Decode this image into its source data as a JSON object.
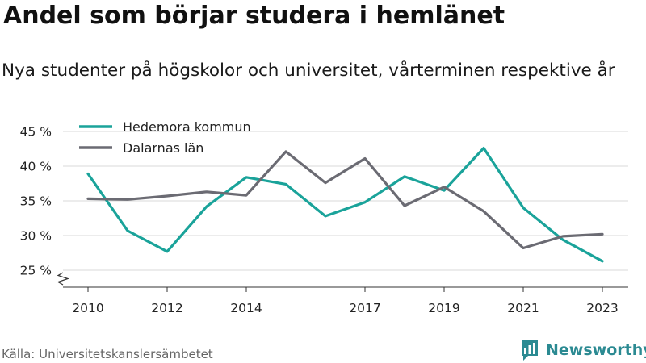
{
  "title": "Andel som börjar studera i hemlänet",
  "subtitle": "Nya studenter på högskolor och universitet, vårterminen respektive år",
  "source": "Källa: Universitetskanslersämbetet",
  "brand": {
    "name": "Newsworthy",
    "icon": "newsworthy-logo-icon",
    "color": "#2b8a92"
  },
  "chart_data": {
    "type": "line",
    "x": [
      2010,
      2011,
      2012,
      2013,
      2014,
      2015,
      2016,
      2017,
      2018,
      2019,
      2020,
      2021,
      2022,
      2023
    ],
    "x_tick_labels": [
      "2010",
      "2012",
      "2014",
      "2017",
      "2019",
      "2021",
      "2023"
    ],
    "x_ticks": [
      2010,
      2012,
      2014,
      2017,
      2019,
      2021,
      2023
    ],
    "ylim": [
      25,
      45
    ],
    "y_ticks": [
      25,
      30,
      35,
      40,
      45
    ],
    "y_tick_labels": [
      "25 %",
      "30 %",
      "35 %",
      "40 %",
      "45 %"
    ],
    "y_axis_break": true,
    "grid": true,
    "legend_position": "top-left",
    "series": [
      {
        "name": "Hedemora kommun",
        "color": "#1aa39a",
        "values": [
          38.9,
          30.7,
          27.7,
          34.2,
          38.4,
          37.4,
          32.8,
          34.8,
          38.5,
          36.5,
          42.6,
          34.0,
          29.4,
          26.3
        ]
      },
      {
        "name": "Dalarnas län",
        "color": "#6b6b73",
        "values": [
          35.3,
          35.2,
          35.7,
          36.3,
          35.8,
          42.1,
          37.6,
          41.1,
          34.3,
          37.0,
          33.5,
          28.2,
          29.9,
          30.2
        ]
      }
    ]
  }
}
